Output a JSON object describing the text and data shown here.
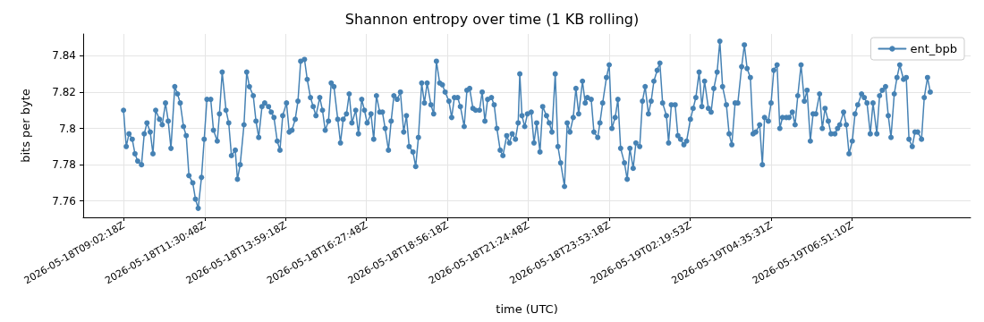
{
  "chart_data": {
    "type": "line",
    "title": "Shannon entropy over time (1 KB rolling)",
    "xlabel": "time (UTC)",
    "ylabel": "bits per byte",
    "x": [
      "2026-05-18T09:02",
      "2026-05-18T09:07",
      "2026-05-18T09:12",
      "2026-05-18T09:18",
      "2026-05-18T09:23",
      "2026-05-18T09:28",
      "2026-05-18T09:35",
      "2026-05-18T09:40",
      "2026-05-18T09:45",
      "2026-05-18T09:51",
      "2026-05-18T09:56",
      "2026-05-18T10:01",
      "2026-05-18T10:08",
      "2026-05-18T10:13",
      "2026-05-18T10:19",
      "2026-05-18T10:24",
      "2026-05-18T10:29",
      "2026-05-18T10:36",
      "2026-05-18T10:41",
      "2026-05-18T10:46",
      "2026-05-18T10:52",
      "2026-05-18T10:57",
      "2026-05-18T11:02",
      "2026-05-18T11:09",
      "2026-05-18T11:14",
      "2026-05-18T11:19",
      "2026-05-18T11:25",
      "2026-05-18T11:30",
      "2026-05-18T11:35",
      "2026-05-18T11:42",
      "2026-05-18T11:47",
      "2026-05-18T11:54",
      "2026-05-18T11:58",
      "2026-05-18T12:03",
      "2026-05-18T12:10",
      "2026-05-18T12:15",
      "2026-05-18T12:20",
      "2026-05-18T12:27",
      "2026-05-18T12:31",
      "2026-05-18T12:36",
      "2026-05-18T12:43",
      "2026-05-18T12:48",
      "2026-05-18T12:53",
      "2026-05-18T13:00",
      "2026-05-18T13:05",
      "2026-05-18T13:10",
      "2026-05-18T13:16",
      "2026-05-18T13:21",
      "2026-05-18T13:28",
      "2026-05-18T13:33",
      "2026-05-18T13:38",
      "2026-05-18T13:44",
      "2026-05-18T13:49",
      "2026-05-18T13:54",
      "2026-05-18T14:01",
      "2026-05-18T14:06",
      "2026-05-18T14:11",
      "2026-05-18T14:17",
      "2026-05-18T14:22",
      "2026-05-18T14:27",
      "2026-05-18T14:34",
      "2026-05-18T14:39",
      "2026-05-18T14:45",
      "2026-05-18T14:50",
      "2026-05-18T14:55",
      "2026-05-18T15:02",
      "2026-05-18T15:07",
      "2026-05-18T15:12",
      "2026-05-18T15:18",
      "2026-05-18T15:23",
      "2026-05-18T15:28",
      "2026-05-18T15:35",
      "2026-05-18T15:40",
      "2026-05-18T15:45",
      "2026-05-18T15:51",
      "2026-05-18T15:56",
      "2026-05-18T16:01",
      "2026-05-18T16:08",
      "2026-05-18T16:13",
      "2026-05-18T16:19",
      "2026-05-18T16:24",
      "2026-05-18T16:29",
      "2026-05-18T16:36",
      "2026-05-18T16:41",
      "2026-05-18T16:46",
      "2026-05-18T16:52",
      "2026-05-18T16:57",
      "2026-05-18T17:02",
      "2026-05-18T17:08",
      "2026-05-18T17:13",
      "2026-05-18T17:18",
      "2026-05-18T17:24",
      "2026-05-18T17:30",
      "2026-05-18T17:36",
      "2026-05-18T17:41",
      "2026-05-18T17:46",
      "2026-05-18T17:53",
      "2026-05-18T17:58",
      "2026-05-18T18:03",
      "2026-05-18T18:09",
      "2026-05-18T18:14",
      "2026-05-18T18:19",
      "2026-05-18T18:26",
      "2026-05-18T18:31",
      "2026-05-18T18:36",
      "2026-05-18T18:42",
      "2026-05-18T18:47",
      "2026-05-18T18:52",
      "2026-05-18T18:59",
      "2026-05-18T19:04",
      "2026-05-18T19:09",
      "2026-05-18T19:15",
      "2026-05-18T19:20",
      "2026-05-18T19:27",
      "2026-05-18T19:32",
      "2026-05-18T19:37",
      "2026-05-18T19:43",
      "2026-05-18T19:48",
      "2026-05-18T19:55",
      "2026-05-18T20:00",
      "2026-05-18T20:05",
      "2026-05-18T20:10",
      "2026-05-18T20:17",
      "2026-05-18T20:22",
      "2026-05-18T20:27",
      "2026-05-18T20:33",
      "2026-05-18T20:38",
      "2026-05-18T20:45",
      "2026-05-18T20:50",
      "2026-05-18T20:55",
      "2026-05-18T21:01",
      "2026-05-18T21:06",
      "2026-05-18T21:09",
      "2026-05-18T21:13",
      "2026-05-18T21:18",
      "2026-05-18T21:23",
      "2026-05-18T21:30",
      "2026-05-18T21:35",
      "2026-05-18T21:40",
      "2026-05-18T21:46",
      "2026-05-18T21:51",
      "2026-05-18T21:58",
      "2026-05-18T22:03",
      "2026-05-18T22:08",
      "2026-05-18T22:14",
      "2026-05-18T22:19",
      "2026-05-18T22:24",
      "2026-05-18T22:31",
      "2026-05-18T22:36",
      "2026-05-18T22:41",
      "2026-05-18T22:47",
      "2026-05-18T22:52",
      "2026-05-18T22:57",
      "2026-05-18T23:04",
      "2026-05-18T23:09",
      "2026-05-18T23:13",
      "2026-05-18T23:20",
      "2026-05-18T23:25",
      "2026-05-18T23:32",
      "2026-05-18T23:36",
      "2026-05-18T23:41",
      "2026-05-18T23:48",
      "2026-05-18T23:53",
      "2026-05-18T23:58",
      "2026-05-19T00:04",
      "2026-05-19T00:09",
      "2026-05-19T00:14",
      "2026-05-19T00:21",
      "2026-05-19T00:26",
      "2026-05-19T00:31",
      "2026-05-19T00:37",
      "2026-05-19T00:42",
      "2026-05-19T00:49",
      "2026-05-19T00:54",
      "2026-05-19T00:59",
      "2026-05-19T01:05",
      "2026-05-19T01:10",
      "2026-05-19T01:15",
      "2026-05-19T01:21",
      "2026-05-19T01:26",
      "2026-05-19T01:31",
      "2026-05-19T01:38",
      "2026-05-19T01:42",
      "2026-05-19T01:47",
      "2026-05-19T01:54",
      "2026-05-19T01:59",
      "2026-05-19T02:04",
      "2026-05-19T02:10",
      "2026-05-19T02:15",
      "2026-05-19T02:22",
      "2026-05-19T02:27",
      "2026-05-19T02:32",
      "2026-05-19T02:38",
      "2026-05-19T02:43",
      "2026-05-19T02:48",
      "2026-05-19T02:55",
      "2026-05-19T03:00",
      "2026-05-19T03:05",
      "2026-05-19T03:11",
      "2026-05-19T03:16",
      "2026-05-19T03:21",
      "2026-05-19T03:28",
      "2026-05-19T03:33",
      "2026-05-19T03:38",
      "2026-05-19T03:44",
      "2026-05-19T03:49",
      "2026-05-19T03:56",
      "2026-05-19T04:01",
      "2026-05-19T04:06",
      "2026-05-19T04:12",
      "2026-05-19T04:17",
      "2026-05-19T04:22",
      "2026-05-19T04:29",
      "2026-05-19T04:34",
      "2026-05-19T04:38",
      "2026-05-19T04:45",
      "2026-05-19T04:50",
      "2026-05-19T04:55",
      "2026-05-19T05:01",
      "2026-05-19T05:06",
      "2026-05-19T05:11",
      "2026-05-19T05:18",
      "2026-05-19T05:23",
      "2026-05-19T05:29",
      "2026-05-19T05:34",
      "2026-05-19T05:39",
      "2026-05-19T05:45",
      "2026-05-19T05:51",
      "2026-05-19T05:56",
      "2026-05-19T06:02",
      "2026-05-19T06:07",
      "2026-05-19T06:12",
      "2026-05-19T06:19",
      "2026-05-19T06:24",
      "2026-05-19T06:29",
      "2026-05-19T06:35",
      "2026-05-19T06:40",
      "2026-05-19T06:47",
      "2026-05-19T06:52",
      "2026-05-19T06:56",
      "2026-05-19T07:03",
      "2026-05-19T07:08",
      "2026-05-19T07:13",
      "2026-05-19T07:19",
      "2026-05-19T07:24",
      "2026-05-19T07:29",
      "2026-05-19T07:36",
      "2026-05-19T07:41",
      "2026-05-19T07:46",
      "2026-05-19T07:52",
      "2026-05-19T07:57",
      "2026-05-19T08:04",
      "2026-05-19T08:09",
      "2026-05-19T08:14",
      "2026-05-19T08:20",
      "2026-05-19T08:25",
      "2026-05-19T08:30",
      "2026-05-19T08:36",
      "2026-05-19T08:41",
      "2026-05-19T08:46",
      "2026-05-19T08:53",
      "2026-05-19T08:58",
      "2026-05-19T09:03",
      "2026-05-19T09:09",
      "2026-05-19T09:14",
      "2026-05-19T09:19",
      "2026-05-19T09:26",
      "2026-05-19T09:31",
      "2026-05-19T09:37",
      "2026-05-19T09:42"
    ],
    "series": [
      {
        "name": "ent_bpb",
        "color": "#4682b4",
        "values": [
          7.81,
          7.79,
          7.797,
          7.794,
          7.786,
          7.782,
          7.78,
          7.797,
          7.803,
          7.798,
          7.786,
          7.81,
          7.805,
          7.802,
          7.814,
          7.804,
          7.789,
          7.823,
          7.819,
          7.814,
          7.801,
          7.796,
          7.774,
          7.77,
          7.761,
          7.756,
          7.773,
          7.794,
          7.816,
          7.816,
          7.799,
          7.793,
          7.808,
          7.831,
          7.81,
          7.803,
          7.785,
          7.788,
          7.772,
          7.78,
          7.802,
          7.831,
          7.823,
          7.818,
          7.804,
          7.795,
          7.812,
          7.814,
          7.812,
          7.809,
          7.806,
          7.793,
          7.788,
          7.807,
          7.814,
          7.798,
          7.799,
          7.805,
          7.815,
          7.837,
          7.838,
          7.827,
          7.817,
          7.812,
          7.807,
          7.817,
          7.81,
          7.799,
          7.804,
          7.825,
          7.823,
          7.805,
          7.792,
          7.805,
          7.808,
          7.819,
          7.803,
          7.81,
          7.797,
          7.816,
          7.81,
          7.803,
          7.808,
          7.794,
          7.818,
          7.809,
          7.809,
          7.8,
          7.788,
          7.804,
          7.818,
          7.816,
          7.82,
          7.798,
          7.807,
          7.79,
          7.787,
          7.779,
          7.795,
          7.825,
          7.814,
          7.825,
          7.813,
          7.808,
          7.837,
          7.825,
          7.824,
          7.82,
          7.815,
          7.806,
          7.817,
          7.817,
          7.812,
          7.801,
          7.821,
          7.822,
          7.811,
          7.81,
          7.81,
          7.82,
          7.804,
          7.816,
          7.817,
          7.813,
          7.8,
          7.788,
          7.785,
          7.796,
          7.792,
          7.797,
          7.794,
          7.803,
          7.83,
          7.807,
          7.801,
          7.808,
          7.809,
          7.792,
          7.803,
          7.787,
          7.812,
          7.807,
          7.803,
          7.798,
          7.83,
          7.79,
          7.781,
          7.768,
          7.803,
          7.798,
          7.806,
          7.822,
          7.808,
          7.826,
          7.814,
          7.817,
          7.816,
          7.798,
          7.795,
          7.803,
          7.814,
          7.828,
          7.835,
          7.8,
          7.806,
          7.816,
          7.789,
          7.781,
          7.772,
          7.789,
          7.778,
          7.792,
          7.79,
          7.815,
          7.823,
          7.808,
          7.815,
          7.826,
          7.832,
          7.836,
          7.814,
          7.807,
          7.792,
          7.813,
          7.813,
          7.796,
          7.794,
          7.791,
          7.793,
          7.805,
          7.811,
          7.817,
          7.831,
          7.812,
          7.826,
          7.811,
          7.809,
          7.822,
          7.831,
          7.848,
          7.823,
          7.813,
          7.797,
          7.791,
          7.814,
          7.814,
          7.834,
          7.846,
          7.833,
          7.828,
          7.797,
          7.798,
          7.802,
          7.78,
          7.806,
          7.804,
          7.814,
          7.832,
          7.835,
          7.8,
          7.806,
          7.806,
          7.806,
          7.809,
          7.802,
          7.818,
          7.835,
          7.815,
          7.821,
          7.793,
          7.808,
          7.808,
          7.819,
          7.8,
          7.811,
          7.804,
          7.797,
          7.797,
          7.8,
          7.802,
          7.809,
          7.802,
          7.786,
          7.793,
          7.808,
          7.813,
          7.819,
          7.817,
          7.814,
          7.797,
          7.814,
          7.797,
          7.818,
          7.821,
          7.823,
          7.807,
          7.795,
          7.819,
          7.828,
          7.835,
          7.827,
          7.828,
          7.794,
          7.79,
          7.798,
          7.798,
          7.794,
          7.817,
          7.828,
          7.82
        ]
      }
    ],
    "xlim": [
      "2026-05-18T07:48",
      "2026-05-19T10:56"
    ],
    "xticks": [
      {
        "value": "2026-05-18T09:02:18",
        "label": "2026-05-18T09:02:18Z"
      },
      {
        "value": "2026-05-18T11:30:48",
        "label": "2026-05-18T11:30:48Z"
      },
      {
        "value": "2026-05-18T13:59:18",
        "label": "2026-05-18T13:59:18Z"
      },
      {
        "value": "2026-05-18T16:27:48",
        "label": "2026-05-18T16:27:48Z"
      },
      {
        "value": "2026-05-18T18:56:18",
        "label": "2026-05-18T18:56:18Z"
      },
      {
        "value": "2026-05-18T21:24:48",
        "label": "2026-05-18T21:24:48Z"
      },
      {
        "value": "2026-05-18T23:53:18",
        "label": "2026-05-18T23:53:18Z"
      },
      {
        "value": "2026-05-19T02:21:48",
        "label": "2026-05-19T02:19:53Z"
      },
      {
        "value": "2026-05-19T04:50:18",
        "label": "2026-05-19T04:35:31Z"
      },
      {
        "value": "2026-05-19T07:18:48",
        "label": "2026-05-19T06:51:10Z"
      }
    ],
    "ylim": [
      7.751,
      7.852
    ],
    "yticks": [
      7.76,
      7.78,
      7.8,
      7.82,
      7.84
    ],
    "grid": true,
    "legend": "top right",
    "marker": "circle",
    "line_style": "solid"
  }
}
